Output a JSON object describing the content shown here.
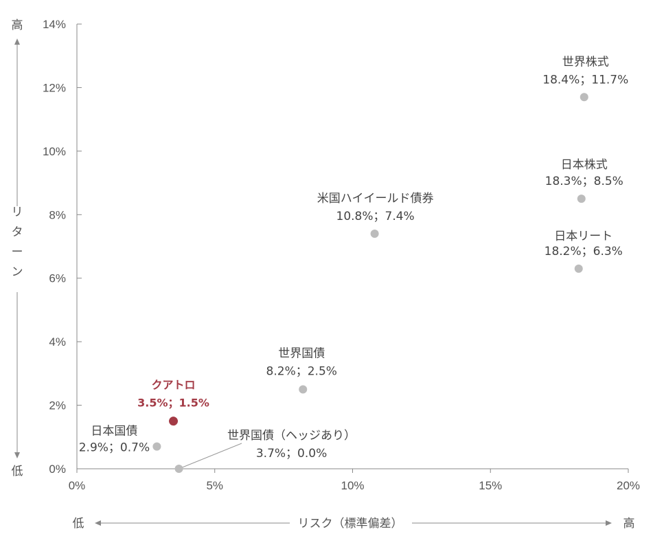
{
  "chart_data": {
    "type": "scatter",
    "xlim": [
      0,
      20
    ],
    "ylim": [
      0,
      14
    ],
    "x_ticks": [
      "0%",
      "5%",
      "10%",
      "15%",
      "20%"
    ],
    "y_ticks": [
      "0%",
      "2%",
      "4%",
      "6%",
      "8%",
      "10%",
      "12%",
      "14%"
    ],
    "xlabel": "リスク（標準偏差）",
    "ylabel": "リターン",
    "x_low_label": "低",
    "x_high_label": "高",
    "y_low_label": "低",
    "y_high_label": "高",
    "colors": {
      "point": "#bcbcbc",
      "highlight": "#a33a45",
      "axis": "#888888"
    },
    "points": [
      {
        "name": "世界株式",
        "value_label": "18.4%；11.7%",
        "x": 18.4,
        "y": 11.7,
        "highlight": false
      },
      {
        "name": "日本株式",
        "value_label": "18.3%；8.5%",
        "x": 18.3,
        "y": 8.5,
        "highlight": false
      },
      {
        "name": "日本リート",
        "value_label": "18.2%；6.3%",
        "x": 18.2,
        "y": 6.3,
        "highlight": false
      },
      {
        "name": "米国ハイイールド債券",
        "value_label": "10.8%；7.4%",
        "x": 10.8,
        "y": 7.4,
        "highlight": false
      },
      {
        "name": "世界国債",
        "value_label": "8.2%；2.5%",
        "x": 8.2,
        "y": 2.5,
        "highlight": false
      },
      {
        "name": "クアトロ",
        "value_label": "3.5%；1.5%",
        "x": 3.5,
        "y": 1.5,
        "highlight": true
      },
      {
        "name": "日本国債",
        "value_label": "2.9%；0.7%",
        "x": 2.9,
        "y": 0.7,
        "highlight": false
      },
      {
        "name": "世界国債（ヘッジあり）",
        "value_label": "3.7%；0.0%",
        "x": 3.7,
        "y": 0.0,
        "highlight": false
      }
    ]
  }
}
